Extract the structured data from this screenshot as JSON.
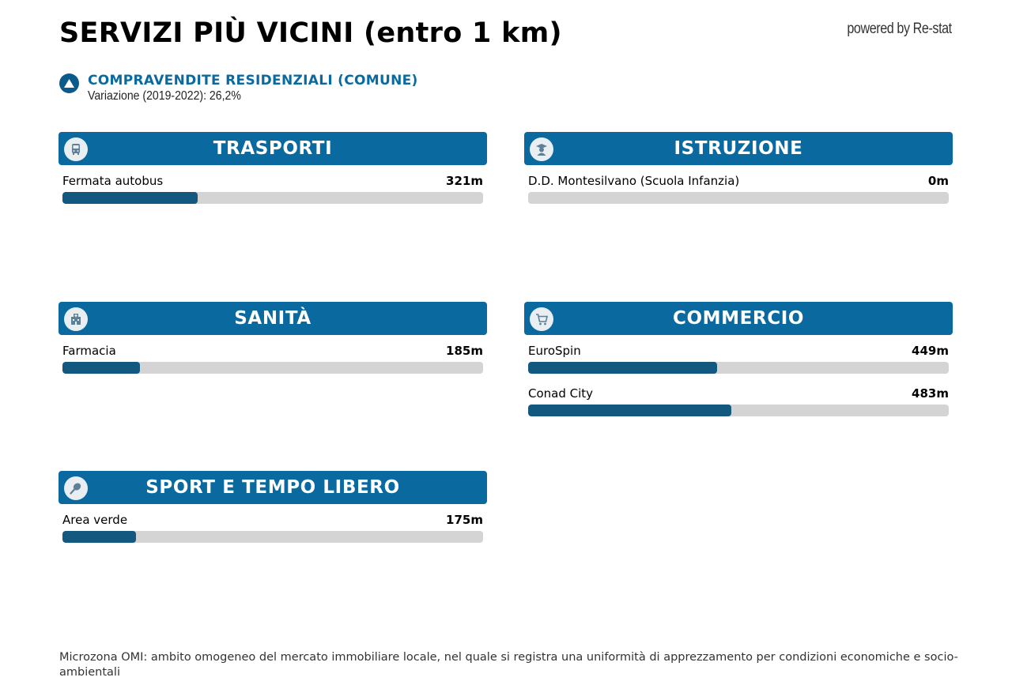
{
  "header": {
    "title": "SERVIZI PIÙ VICINI (entro 1 km)",
    "powered_by": "powered by Re-stat"
  },
  "stat": {
    "icon": "triangle-icon",
    "title": "COMPRAVENDITE RESIDENZIALI (COMUNE)",
    "subtitle": "Variazione (2019-2022): 26,2%"
  },
  "colors": {
    "header_bg": "#0a6aa0",
    "bar_fill": "#13587f",
    "bar_track": "#d4d4d4",
    "stat_title": "#0a6aa0"
  },
  "bar_scale_max_m": 1000,
  "sections": {
    "trasporti": {
      "title": "TRASPORTI",
      "icon": "bus-icon",
      "items": [
        {
          "name": "Fermata autobus",
          "distance": "321m",
          "meters": 321
        }
      ]
    },
    "istruzione": {
      "title": "ISTRUZIONE",
      "icon": "student-icon",
      "items": [
        {
          "name": "D.D. Montesilvano (Scuola Infanzia)",
          "distance": "0m",
          "meters": 0
        }
      ]
    },
    "sanita": {
      "title": "SANITÀ",
      "icon": "hospital-icon",
      "items": [
        {
          "name": "Farmacia",
          "distance": "185m",
          "meters": 185
        }
      ]
    },
    "commercio": {
      "title": "COMMERCIO",
      "icon": "shopping-cart-icon",
      "items": [
        {
          "name": "EuroSpin",
          "distance": "449m",
          "meters": 449
        },
        {
          "name": "Conad City",
          "distance": "483m",
          "meters": 483
        }
      ]
    },
    "sport": {
      "title": "SPORT E TEMPO LIBERO",
      "icon": "tennis-racket-icon",
      "items": [
        {
          "name": "Area verde",
          "distance": "175m",
          "meters": 175
        }
      ]
    }
  },
  "footnote": "Microzona OMI: ambito omogeneo del mercato immobiliare locale, nel quale si registra una uniformità di apprezzamento per condizioni economiche e socio-ambientali"
}
